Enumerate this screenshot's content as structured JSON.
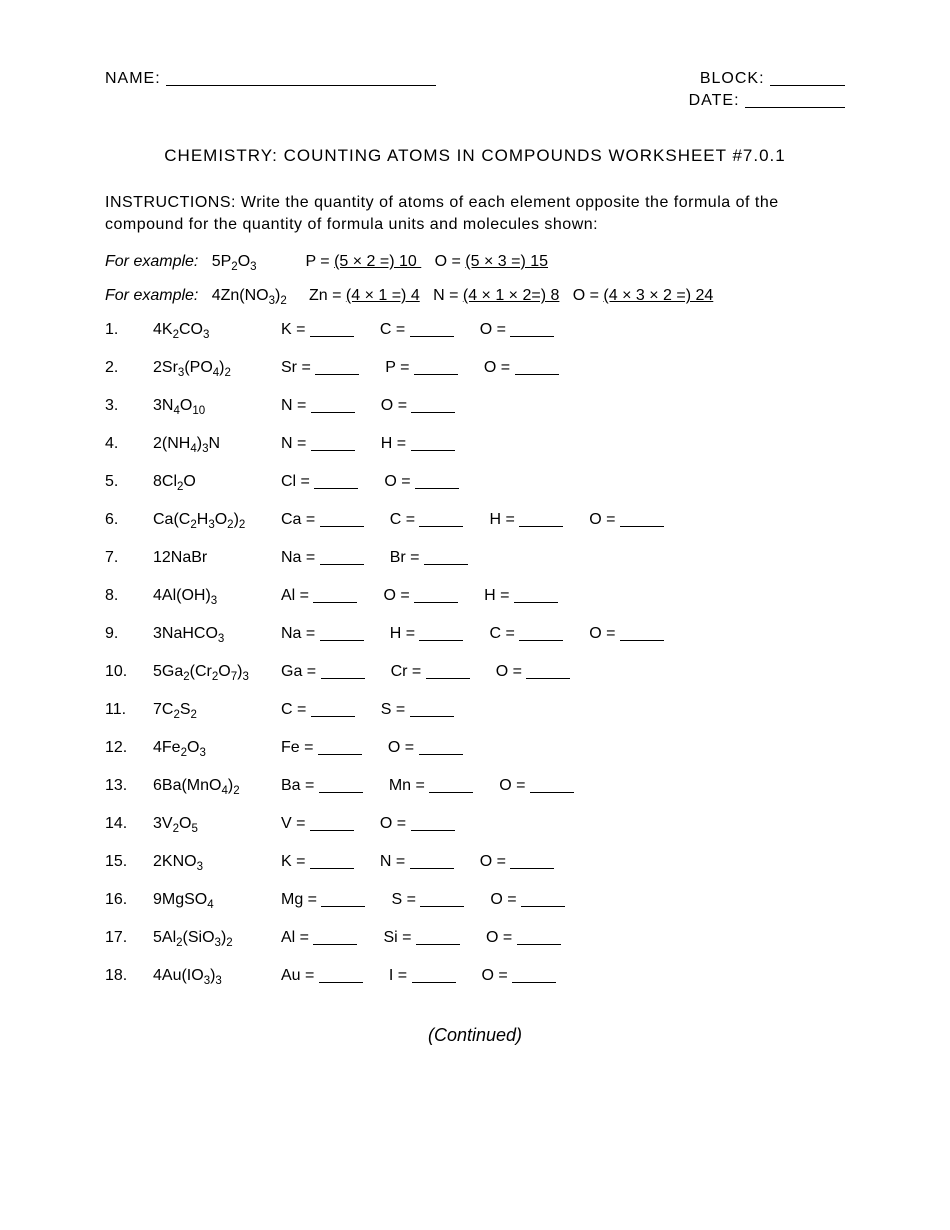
{
  "header": {
    "name_label": "NAME:",
    "block_label": "BLOCK:",
    "date_label": "DATE:"
  },
  "title": "CHEMISTRY: COUNTING ATOMS IN COMPOUNDS WORKSHEET #7.0.1",
  "instructions_label": "INSTRUCTIONS:",
  "instructions_text": "Write the quantity of atoms of each element opposite the formula of the compound for the quantity of formula units and molecules shown:",
  "example_label": "For example:",
  "examples": [
    {
      "formula_html": "5P<sub>2</sub>O<sub>3</sub>",
      "parts": [
        {
          "sym": "P",
          "ans": "  (5 × 2 =) 10   "
        },
        {
          "sym": "O",
          "ans": "  (5 × 3 =) 15   "
        }
      ]
    },
    {
      "formula_html": "4Zn(NO<sub>3</sub>)<sub>2</sub>",
      "parts": [
        {
          "sym": "Zn",
          "ans": "(4 × 1 =) 4"
        },
        {
          "sym": "N",
          "ans": "(4 × 1 × 2=) 8"
        },
        {
          "sym": "O",
          "ans": "(4 × 3 × 2 =) 24"
        }
      ]
    }
  ],
  "questions": [
    {
      "num": "1.",
      "formula_html": "4K<sub>2</sub>CO<sub>3</sub>",
      "elems": [
        "K",
        "C",
        "O"
      ]
    },
    {
      "num": "2.",
      "formula_html": "2Sr<sub>3</sub>(PO<sub>4</sub>)<sub>2</sub>",
      "elems": [
        "Sr",
        "P",
        "O"
      ]
    },
    {
      "num": "3.",
      "formula_html": "3N<sub>4</sub>O<sub>10</sub>",
      "elems": [
        "N",
        "O"
      ]
    },
    {
      "num": "4.",
      "formula_html": "2(NH<sub>4</sub>)<sub>3</sub>N",
      "elems": [
        "N",
        "H"
      ]
    },
    {
      "num": "5.",
      "formula_html": "8Cl<sub>2</sub>O",
      "elems": [
        "Cl",
        "O"
      ]
    },
    {
      "num": "6.",
      "formula_html": "Ca(C<sub>2</sub>H<sub>3</sub>O<sub>2</sub>)<sub>2</sub>",
      "elems": [
        "Ca",
        "C",
        "H",
        "O"
      ]
    },
    {
      "num": "7.",
      "formula_html": "12NaBr",
      "elems": [
        "Na",
        "Br"
      ]
    },
    {
      "num": "8.",
      "formula_html": "4Al(OH)<sub>3</sub>",
      "elems": [
        "Al",
        "O",
        "H"
      ]
    },
    {
      "num": "9.",
      "formula_html": "3NaHCO<sub>3</sub>",
      "elems": [
        "Na",
        "H",
        "C",
        "O"
      ]
    },
    {
      "num": "10.",
      "formula_html": "5Ga<sub>2</sub>(Cr<sub>2</sub>O<sub>7</sub>)<sub>3</sub>",
      "elems": [
        "Ga",
        "Cr",
        "O"
      ]
    },
    {
      "num": "11.",
      "formula_html": "7C<sub>2</sub>S<sub>2</sub>",
      "elems": [
        "C",
        "S"
      ]
    },
    {
      "num": "12.",
      "formula_html": "4Fe<sub>2</sub>O<sub>3</sub>",
      "elems": [
        "Fe",
        "O"
      ]
    },
    {
      "num": "13.",
      "formula_html": "6Ba(MnO<sub>4</sub>)<sub>2</sub>",
      "elems": [
        "Ba",
        "Mn",
        "O"
      ]
    },
    {
      "num": "14.",
      "formula_html": "3V<sub>2</sub>O<sub>5</sub>",
      "elems": [
        "V",
        "O"
      ]
    },
    {
      "num": "15.",
      "formula_html": "2KNO<sub>3</sub>",
      "elems": [
        "K",
        "N",
        "O"
      ]
    },
    {
      "num": "16.",
      "formula_html": "9MgSO<sub>4</sub>",
      "elems": [
        "Mg",
        "S",
        "O"
      ]
    },
    {
      "num": "17.",
      "formula_html": "5Al<sub>2</sub>(SiO<sub>3</sub>)<sub>2</sub>",
      "elems": [
        "Al",
        "Si",
        "O"
      ]
    },
    {
      "num": "18.",
      "formula_html": "4Au(IO<sub>3</sub>)<sub>3</sub>",
      "elems": [
        "Au",
        "I",
        "O"
      ]
    }
  ],
  "continued": "(Continued)"
}
